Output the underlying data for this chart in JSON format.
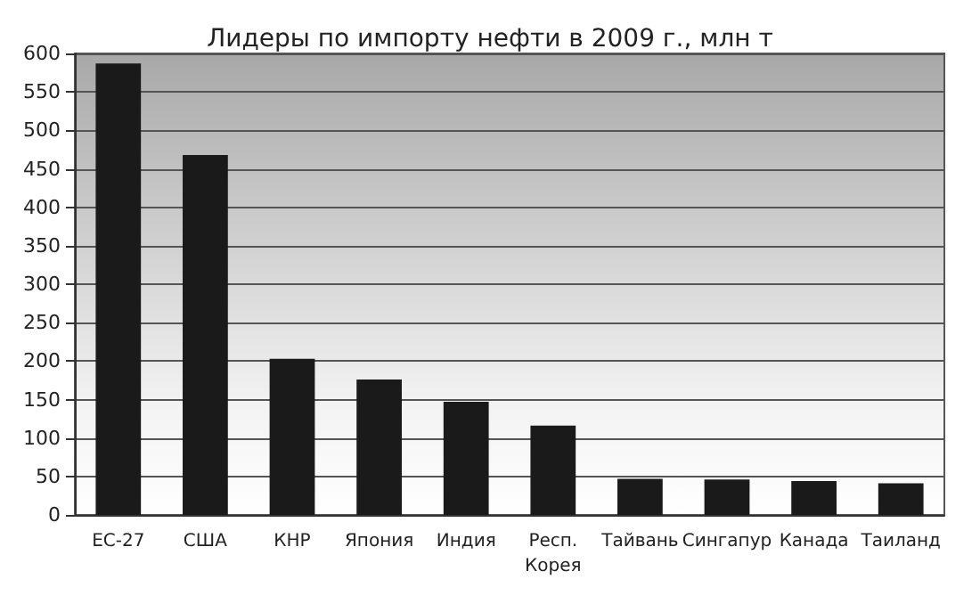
{
  "chart_data": {
    "type": "bar",
    "title": "Лидеры по импорту нефти в 2009 г., млн т",
    "categories": [
      "ЕС-27",
      "США",
      "КНР",
      "Япония",
      "Индия",
      "Респ. Корея",
      "Тайвань",
      "Сингапур",
      "Канада",
      "Таиланд"
    ],
    "values": [
      587,
      468,
      203,
      176,
      147,
      116,
      47,
      46,
      44,
      41
    ],
    "color": "#1a1a1a",
    "ylim": [
      0,
      600
    ],
    "yticks": [
      0,
      50,
      100,
      150,
      200,
      250,
      300,
      350,
      400,
      450,
      500,
      550,
      600
    ],
    "grid": true
  }
}
